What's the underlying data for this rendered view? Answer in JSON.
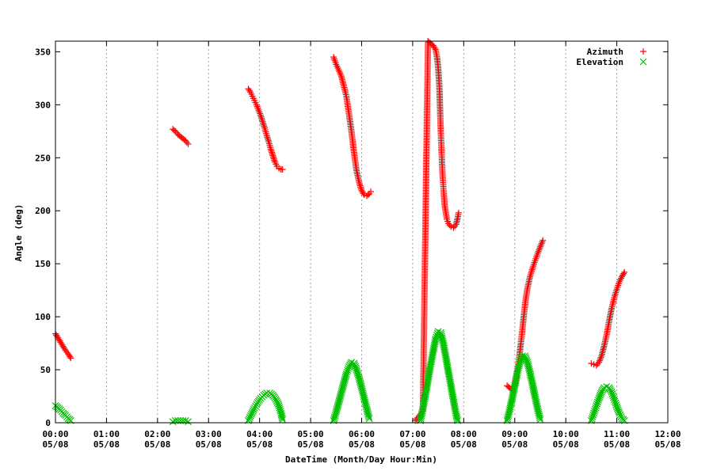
{
  "chart_data": {
    "type": "scatter",
    "xlabel": "DateTime (Month/Day Hour:Min)",
    "ylabel": "Angle (deg)",
    "x_unit": "hours",
    "xlim": [
      0,
      12
    ],
    "ylim": [
      0,
      360
    ],
    "x_ticks": [
      {
        "value": 0,
        "time": "00:00",
        "date": "05/08"
      },
      {
        "value": 1,
        "time": "01:00",
        "date": "05/08"
      },
      {
        "value": 2,
        "time": "02:00",
        "date": "05/08"
      },
      {
        "value": 3,
        "time": "03:00",
        "date": "05/08"
      },
      {
        "value": 4,
        "time": "04:00",
        "date": "05/08"
      },
      {
        "value": 5,
        "time": "05:00",
        "date": "05/08"
      },
      {
        "value": 6,
        "time": "06:00",
        "date": "05/08"
      },
      {
        "value": 7,
        "time": "07:00",
        "date": "05/08"
      },
      {
        "value": 8,
        "time": "08:00",
        "date": "05/08"
      },
      {
        "value": 9,
        "time": "09:00",
        "date": "05/08"
      },
      {
        "value": 10,
        "time": "10:00",
        "date": "05/08"
      },
      {
        "value": 11,
        "time": "11:00",
        "date": "05/08"
      },
      {
        "value": 12,
        "time": "12:00",
        "date": "05/08"
      }
    ],
    "y_ticks": [
      0,
      50,
      100,
      150,
      200,
      250,
      300,
      350
    ],
    "grid": "vertical dotted at each hour",
    "legend_position": "top-right",
    "series": [
      {
        "name": "Azimuth",
        "marker": "+",
        "color": "#ff0000",
        "points": [
          [
            0.0,
            84
          ],
          [
            0.05,
            80
          ],
          [
            0.1,
            76
          ],
          [
            0.15,
            72
          ],
          [
            0.2,
            68
          ],
          [
            0.25,
            65
          ],
          [
            0.3,
            61
          ],
          [
            2.3,
            277
          ],
          [
            2.35,
            275
          ],
          [
            2.4,
            272
          ],
          [
            2.45,
            270
          ],
          [
            2.5,
            268
          ],
          [
            2.55,
            266
          ],
          [
            2.6,
            263
          ],
          [
            3.78,
            315
          ],
          [
            3.82,
            312
          ],
          [
            3.86,
            308
          ],
          [
            3.9,
            304
          ],
          [
            3.94,
            300
          ],
          [
            3.98,
            295
          ],
          [
            4.02,
            290
          ],
          [
            4.06,
            284
          ],
          [
            4.1,
            278
          ],
          [
            4.14,
            271
          ],
          [
            4.18,
            265
          ],
          [
            4.22,
            258
          ],
          [
            4.26,
            252
          ],
          [
            4.3,
            246
          ],
          [
            4.34,
            242
          ],
          [
            4.38,
            240
          ],
          [
            4.42,
            239
          ],
          [
            4.45,
            239
          ],
          [
            5.45,
            345
          ],
          [
            5.5,
            338
          ],
          [
            5.55,
            333
          ],
          [
            5.6,
            327
          ],
          [
            5.65,
            318
          ],
          [
            5.7,
            308
          ],
          [
            5.75,
            292
          ],
          [
            5.8,
            275
          ],
          [
            5.85,
            255
          ],
          [
            5.9,
            238
          ],
          [
            5.95,
            227
          ],
          [
            6.0,
            219
          ],
          [
            6.05,
            215
          ],
          [
            6.1,
            214
          ],
          [
            6.15,
            216
          ],
          [
            6.18,
            218
          ],
          [
            7.05,
            2
          ],
          [
            7.1,
            5
          ],
          [
            7.15,
            8
          ],
          [
            7.2,
            11
          ],
          [
            7.3,
            360
          ],
          [
            7.35,
            358
          ],
          [
            7.4,
            356
          ],
          [
            7.45,
            352
          ],
          [
            7.48,
            344
          ],
          [
            7.5,
            335
          ],
          [
            7.52,
            320
          ],
          [
            7.53,
            308
          ],
          [
            7.54,
            290
          ],
          [
            7.55,
            276
          ],
          [
            7.56,
            263
          ],
          [
            7.57,
            250
          ],
          [
            7.58,
            239
          ],
          [
            7.59,
            230
          ],
          [
            7.6,
            223
          ],
          [
            7.61,
            216
          ],
          [
            7.62,
            210
          ],
          [
            7.63,
            204
          ],
          [
            7.65,
            198
          ],
          [
            7.67,
            192
          ],
          [
            7.7,
            188
          ],
          [
            7.75,
            185
          ],
          [
            7.8,
            184
          ],
          [
            7.85,
            187
          ],
          [
            7.88,
            193
          ],
          [
            7.9,
            198
          ],
          [
            8.85,
            35
          ],
          [
            8.9,
            33
          ],
          [
            8.95,
            31
          ],
          [
            9.0,
            35
          ],
          [
            9.03,
            43
          ],
          [
            9.06,
            53
          ],
          [
            9.09,
            63
          ],
          [
            9.12,
            75
          ],
          [
            9.15,
            88
          ],
          [
            9.18,
            102
          ],
          [
            9.21,
            115
          ],
          [
            9.25,
            127
          ],
          [
            9.3,
            138
          ],
          [
            9.35,
            146
          ],
          [
            9.4,
            153
          ],
          [
            9.45,
            160
          ],
          [
            9.5,
            166
          ],
          [
            9.55,
            172
          ],
          [
            10.5,
            56
          ],
          [
            10.55,
            55
          ],
          [
            10.6,
            54
          ],
          [
            10.65,
            57
          ],
          [
            10.7,
            63
          ],
          [
            10.75,
            72
          ],
          [
            10.8,
            83
          ],
          [
            10.85,
            96
          ],
          [
            10.9,
            108
          ],
          [
            10.95,
            118
          ],
          [
            11.0,
            126
          ],
          [
            11.05,
            133
          ],
          [
            11.1,
            138
          ],
          [
            11.15,
            142
          ]
        ]
      },
      {
        "name": "Elevation",
        "marker": "x",
        "color": "#00c000",
        "points": [
          [
            0.0,
            16
          ],
          [
            0.05,
            14
          ],
          [
            0.1,
            12
          ],
          [
            0.15,
            9
          ],
          [
            0.2,
            7
          ],
          [
            0.25,
            4
          ],
          [
            0.3,
            2
          ],
          [
            2.3,
            1
          ],
          [
            2.35,
            2
          ],
          [
            2.4,
            2
          ],
          [
            2.45,
            2
          ],
          [
            2.5,
            2
          ],
          [
            2.55,
            2
          ],
          [
            2.6,
            1
          ],
          [
            3.78,
            2
          ],
          [
            3.84,
            8
          ],
          [
            3.9,
            14
          ],
          [
            3.96,
            19
          ],
          [
            4.02,
            23
          ],
          [
            4.08,
            26
          ],
          [
            4.14,
            28
          ],
          [
            4.2,
            28
          ],
          [
            4.26,
            26
          ],
          [
            4.32,
            22
          ],
          [
            4.38,
            16
          ],
          [
            4.42,
            9
          ],
          [
            4.45,
            3
          ],
          [
            5.45,
            2
          ],
          [
            5.5,
            10
          ],
          [
            5.55,
            19
          ],
          [
            5.6,
            28
          ],
          [
            5.65,
            37
          ],
          [
            5.7,
            46
          ],
          [
            5.75,
            53
          ],
          [
            5.8,
            57
          ],
          [
            5.85,
            56
          ],
          [
            5.9,
            50
          ],
          [
            5.95,
            42
          ],
          [
            6.0,
            33
          ],
          [
            6.05,
            23
          ],
          [
            6.1,
            13
          ],
          [
            6.15,
            4
          ],
          [
            7.15,
            2
          ],
          [
            7.2,
            13
          ],
          [
            7.25,
            26
          ],
          [
            7.3,
            40
          ],
          [
            7.35,
            54
          ],
          [
            7.4,
            67
          ],
          [
            7.45,
            79
          ],
          [
            7.5,
            86
          ],
          [
            7.55,
            85
          ],
          [
            7.6,
            75
          ],
          [
            7.65,
            62
          ],
          [
            7.7,
            48
          ],
          [
            7.75,
            35
          ],
          [
            7.8,
            21
          ],
          [
            7.85,
            8
          ],
          [
            7.88,
            2
          ],
          [
            8.85,
            2
          ],
          [
            8.9,
            12
          ],
          [
            8.95,
            23
          ],
          [
            9.0,
            35
          ],
          [
            9.05,
            47
          ],
          [
            9.1,
            57
          ],
          [
            9.15,
            63
          ],
          [
            9.2,
            63
          ],
          [
            9.25,
            57
          ],
          [
            9.3,
            47
          ],
          [
            9.35,
            36
          ],
          [
            9.4,
            24
          ],
          [
            9.45,
            13
          ],
          [
            9.5,
            3
          ],
          [
            10.5,
            2
          ],
          [
            10.55,
            9
          ],
          [
            10.6,
            16
          ],
          [
            10.65,
            23
          ],
          [
            10.7,
            29
          ],
          [
            10.75,
            33
          ],
          [
            10.8,
            34
          ],
          [
            10.85,
            33
          ],
          [
            10.9,
            29
          ],
          [
            10.95,
            22
          ],
          [
            11.0,
            15
          ],
          [
            11.05,
            9
          ],
          [
            11.1,
            4
          ],
          [
            11.15,
            2
          ]
        ]
      }
    ]
  }
}
